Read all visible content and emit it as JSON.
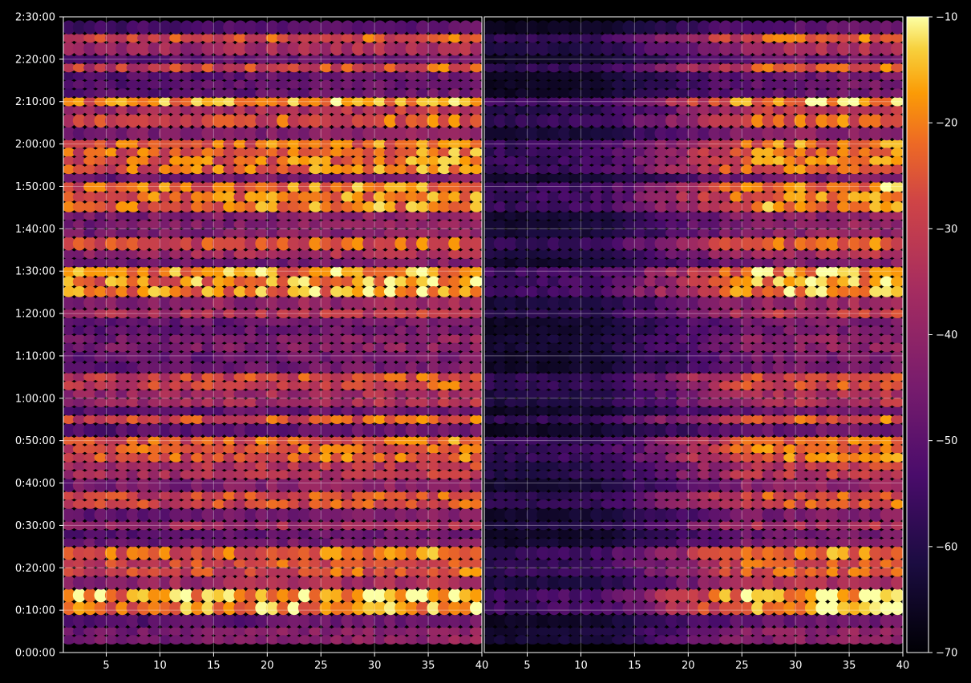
{
  "chart_data": {
    "type": "heatmap",
    "title": "",
    "xlabel": "",
    "ylabel": "",
    "colormap": "inferno",
    "background_color": "#000000",
    "panels": [
      {
        "name": "",
        "xlim": [
          1,
          40
        ],
        "xticks": [
          5,
          10,
          15,
          20,
          25,
          30,
          35
        ],
        "end_label": "40",
        "bands": [
          {
            "t0": 2,
            "t1": 6,
            "level": 0.45
          },
          {
            "t0": 6,
            "t1": 9,
            "level": 0.35
          },
          {
            "t0": 9,
            "t1": 12,
            "level": 0.85
          },
          {
            "t0": 12,
            "t1": 15,
            "level": 0.9
          },
          {
            "t0": 15,
            "t1": 18,
            "level": 0.55
          },
          {
            "t0": 18,
            "t1": 22,
            "level": 0.72
          },
          {
            "t0": 22,
            "t1": 25,
            "level": 0.78
          },
          {
            "t0": 25,
            "t1": 27,
            "level": 0.4
          },
          {
            "t0": 27,
            "t1": 29,
            "level": 0.35
          },
          {
            "t0": 29,
            "t1": 31,
            "level": 0.55
          },
          {
            "t0": 31,
            "t1": 34,
            "level": 0.4
          },
          {
            "t0": 34,
            "t1": 38,
            "level": 0.7
          },
          {
            "t0": 38,
            "t1": 41,
            "level": 0.45
          },
          {
            "t0": 41,
            "t1": 45,
            "level": 0.6
          },
          {
            "t0": 45,
            "t1": 51,
            "level": 0.75
          },
          {
            "t0": 51,
            "t1": 54,
            "level": 0.35
          },
          {
            "t0": 54,
            "t1": 56,
            "level": 0.72
          },
          {
            "t0": 56,
            "t1": 58,
            "level": 0.35
          },
          {
            "t0": 58,
            "t1": 62,
            "level": 0.55
          },
          {
            "t0": 62,
            "t1": 66,
            "level": 0.7
          },
          {
            "t0": 66,
            "t1": 71,
            "level": 0.38
          },
          {
            "t0": 71,
            "t1": 75,
            "level": 0.45
          },
          {
            "t0": 75,
            "t1": 79,
            "level": 0.38
          },
          {
            "t0": 79,
            "t1": 81,
            "level": 0.6
          },
          {
            "t0": 81,
            "t1": 84,
            "level": 0.5
          },
          {
            "t0": 84,
            "t1": 91,
            "level": 0.85
          },
          {
            "t0": 91,
            "t1": 93,
            "level": 0.4
          },
          {
            "t0": 93,
            "t1": 95,
            "level": 0.55
          },
          {
            "t0": 95,
            "t1": 98,
            "level": 0.72
          },
          {
            "t0": 98,
            "t1": 100,
            "level": 0.45
          },
          {
            "t0": 100,
            "t1": 104,
            "level": 0.45
          },
          {
            "t0": 104,
            "t1": 111,
            "level": 0.8
          },
          {
            "t0": 111,
            "t1": 113,
            "level": 0.4
          },
          {
            "t0": 113,
            "t1": 121,
            "level": 0.78
          },
          {
            "t0": 121,
            "t1": 124,
            "level": 0.45
          },
          {
            "t0": 124,
            "t1": 127,
            "level": 0.72
          },
          {
            "t0": 127,
            "t1": 129,
            "level": 0.6
          },
          {
            "t0": 129,
            "t1": 131,
            "level": 0.85
          },
          {
            "t0": 131,
            "t1": 137,
            "level": 0.35
          },
          {
            "t0": 137,
            "t1": 139,
            "level": 0.7
          },
          {
            "t0": 139,
            "t1": 141,
            "level": 0.35
          },
          {
            "t0": 141,
            "t1": 144,
            "level": 0.55
          },
          {
            "t0": 144,
            "t1": 146,
            "level": 0.72
          },
          {
            "t0": 146,
            "t1": 149,
            "level": 0.3
          }
        ]
      },
      {
        "name": "",
        "xlim": [
          1,
          40
        ],
        "xticks": [
          5,
          10,
          15,
          20,
          25,
          30,
          35
        ],
        "end_label": "40",
        "bands": [
          {
            "t0": 2,
            "t1": 6,
            "level": 0.45
          },
          {
            "t0": 6,
            "t1": 9,
            "level": 0.35
          },
          {
            "t0": 9,
            "t1": 12,
            "level": 0.85
          },
          {
            "t0": 12,
            "t1": 15,
            "level": 0.9
          },
          {
            "t0": 15,
            "t1": 18,
            "level": 0.55
          },
          {
            "t0": 18,
            "t1": 22,
            "level": 0.72
          },
          {
            "t0": 22,
            "t1": 25,
            "level": 0.78
          },
          {
            "t0": 25,
            "t1": 27,
            "level": 0.4
          },
          {
            "t0": 27,
            "t1": 29,
            "level": 0.35
          },
          {
            "t0": 29,
            "t1": 31,
            "level": 0.55
          },
          {
            "t0": 31,
            "t1": 34,
            "level": 0.4
          },
          {
            "t0": 34,
            "t1": 38,
            "level": 0.7
          },
          {
            "t0": 38,
            "t1": 41,
            "level": 0.45
          },
          {
            "t0": 41,
            "t1": 45,
            "level": 0.6
          },
          {
            "t0": 45,
            "t1": 51,
            "level": 0.75
          },
          {
            "t0": 51,
            "t1": 54,
            "level": 0.35
          },
          {
            "t0": 54,
            "t1": 56,
            "level": 0.72
          },
          {
            "t0": 56,
            "t1": 58,
            "level": 0.35
          },
          {
            "t0": 58,
            "t1": 62,
            "level": 0.55
          },
          {
            "t0": 62,
            "t1": 66,
            "level": 0.7
          },
          {
            "t0": 66,
            "t1": 71,
            "level": 0.38
          },
          {
            "t0": 71,
            "t1": 75,
            "level": 0.45
          },
          {
            "t0": 75,
            "t1": 79,
            "level": 0.38
          },
          {
            "t0": 79,
            "t1": 81,
            "level": 0.6
          },
          {
            "t0": 81,
            "t1": 84,
            "level": 0.5
          },
          {
            "t0": 84,
            "t1": 91,
            "level": 0.85
          },
          {
            "t0": 91,
            "t1": 93,
            "level": 0.4
          },
          {
            "t0": 93,
            "t1": 95,
            "level": 0.55
          },
          {
            "t0": 95,
            "t1": 98,
            "level": 0.72
          },
          {
            "t0": 98,
            "t1": 100,
            "level": 0.45
          },
          {
            "t0": 100,
            "t1": 104,
            "level": 0.45
          },
          {
            "t0": 104,
            "t1": 111,
            "level": 0.8
          },
          {
            "t0": 111,
            "t1": 113,
            "level": 0.4
          },
          {
            "t0": 113,
            "t1": 121,
            "level": 0.78
          },
          {
            "t0": 121,
            "t1": 124,
            "level": 0.45
          },
          {
            "t0": 124,
            "t1": 127,
            "level": 0.72
          },
          {
            "t0": 127,
            "t1": 129,
            "level": 0.6
          },
          {
            "t0": 129,
            "t1": 131,
            "level": 0.85
          },
          {
            "t0": 131,
            "t1": 137,
            "level": 0.35
          },
          {
            "t0": 137,
            "t1": 139,
            "level": 0.7
          },
          {
            "t0": 139,
            "t1": 141,
            "level": 0.35
          },
          {
            "t0": 141,
            "t1": 144,
            "level": 0.55
          },
          {
            "t0": 144,
            "t1": 146,
            "level": 0.72
          },
          {
            "t0": 146,
            "t1": 149,
            "level": 0.3
          }
        ]
      }
    ],
    "y_axis": {
      "unit": "minutes",
      "ylim": [
        0,
        150
      ],
      "ticks": [
        {
          "value": 0,
          "label": "0:00:00"
        },
        {
          "value": 10,
          "label": "0:10:00"
        },
        {
          "value": 20,
          "label": "0:20:00"
        },
        {
          "value": 30,
          "label": "0:30:00"
        },
        {
          "value": 40,
          "label": "0:40:00"
        },
        {
          "value": 50,
          "label": "0:50:00"
        },
        {
          "value": 60,
          "label": "1:00:00"
        },
        {
          "value": 70,
          "label": "1:10:00"
        },
        {
          "value": 80,
          "label": "1:20:00"
        },
        {
          "value": 90,
          "label": "1:30:00"
        },
        {
          "value": 100,
          "label": "1:40:00"
        },
        {
          "value": 110,
          "label": "1:50:00"
        },
        {
          "value": 120,
          "label": "2:00:00"
        },
        {
          "value": 130,
          "label": "2:10:00"
        },
        {
          "value": 140,
          "label": "2:20:00"
        },
        {
          "value": 150,
          "label": "2:30:00"
        }
      ]
    },
    "colorbar": {
      "range": [
        -70,
        -10
      ],
      "ticks": [
        {
          "value": -70,
          "label": "−70"
        },
        {
          "value": -60,
          "label": "−60"
        },
        {
          "value": -50,
          "label": "−50"
        },
        {
          "value": -40,
          "label": "−40"
        },
        {
          "value": -30,
          "label": "−30"
        },
        {
          "value": -20,
          "label": "−20"
        },
        {
          "value": -10,
          "label": "−10"
        }
      ]
    },
    "grid": true,
    "legend": "none"
  }
}
